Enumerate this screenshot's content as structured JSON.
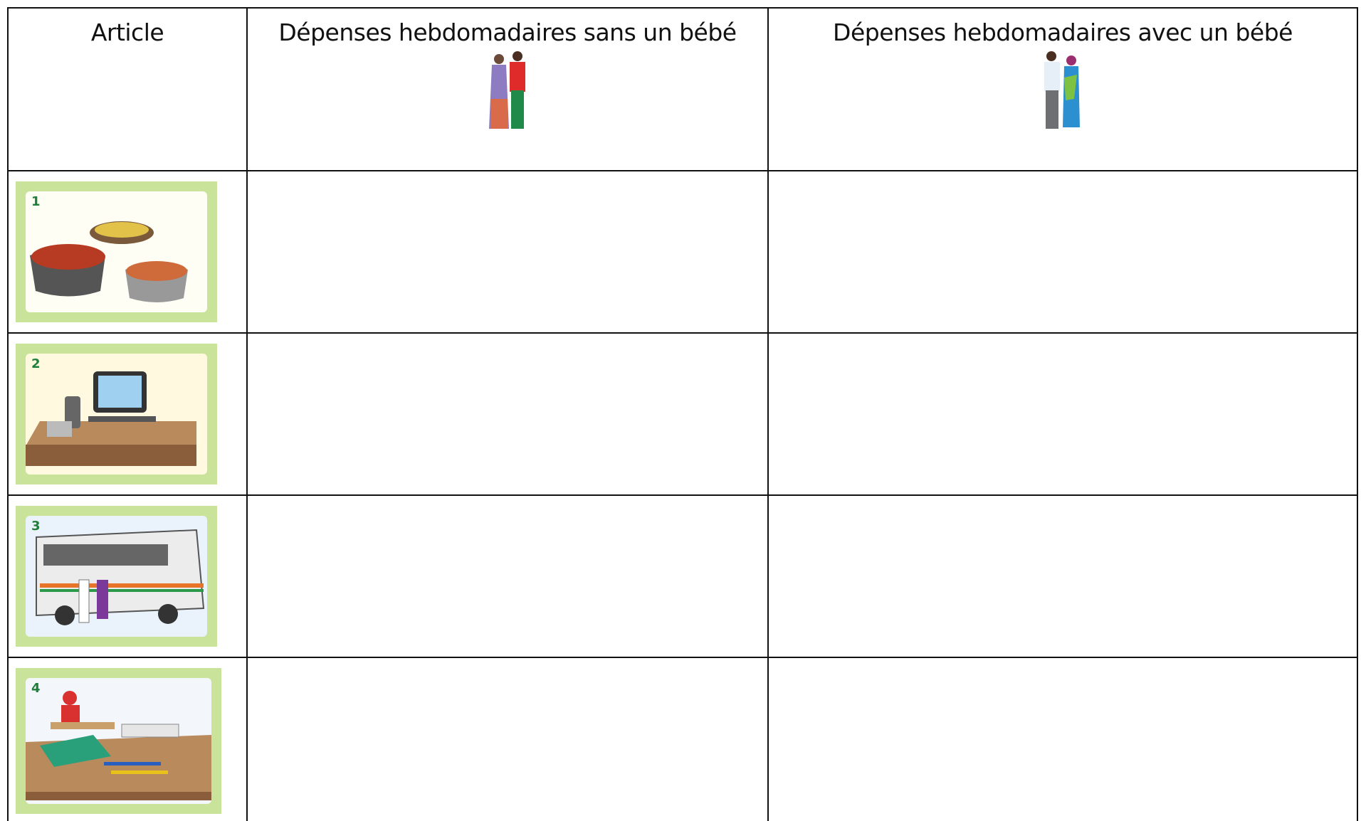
{
  "header": {
    "columns": [
      "Article",
      "Dépenses hebdomadaires sans un bébé",
      "Dépenses hebdomadaires avec un bébé"
    ]
  },
  "rows": [
    {
      "number": 1
    },
    {
      "number": 2
    },
    {
      "number": 3
    },
    {
      "number": 4
    }
  ]
}
